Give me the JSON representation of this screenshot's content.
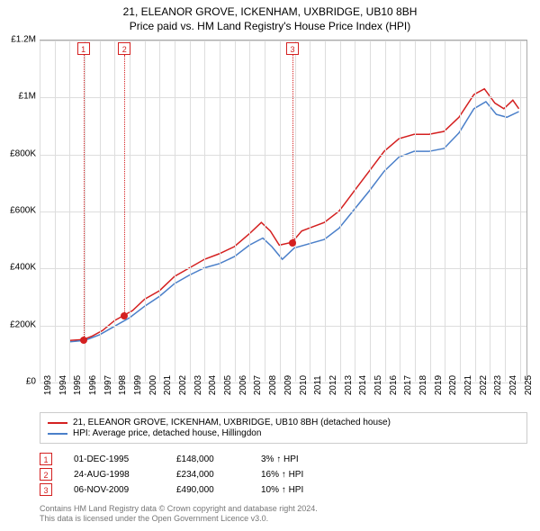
{
  "title_line1": "21, ELEANOR GROVE, ICKENHAM, UXBRIDGE, UB10 8BH",
  "title_line2": "Price paid vs. HM Land Registry's House Price Index (HPI)",
  "chart": {
    "type": "line",
    "background_color": "#ffffff",
    "grid_color": "#dddddd",
    "axis_color": "#aaaaaa",
    "x_range": [
      1993,
      2025.5
    ],
    "y_range": [
      0,
      1200000
    ],
    "y_ticks": [
      0,
      200000,
      400000,
      600000,
      800000,
      1000000,
      1200000
    ],
    "y_tick_labels": [
      "£0",
      "£200K",
      "£400K",
      "£600K",
      "£800K",
      "£1M",
      "£1.2M"
    ],
    "x_ticks": [
      1993,
      1994,
      1995,
      1996,
      1997,
      1998,
      1999,
      2000,
      2001,
      2002,
      2003,
      2004,
      2005,
      2006,
      2007,
      2008,
      2009,
      2010,
      2011,
      2012,
      2013,
      2014,
      2015,
      2016,
      2017,
      2018,
      2019,
      2020,
      2021,
      2022,
      2023,
      2024,
      2025
    ],
    "x_tick_labels": [
      "1993",
      "1994",
      "1995",
      "1996",
      "1997",
      "1998",
      "1999",
      "2000",
      "2001",
      "2002",
      "2003",
      "2004",
      "2005",
      "2006",
      "2007",
      "2008",
      "2009",
      "2010",
      "2011",
      "2012",
      "2013",
      "2014",
      "2015",
      "2016",
      "2017",
      "2018",
      "2019",
      "2020",
      "2021",
      "2022",
      "2023",
      "2024",
      "2025"
    ],
    "y_label_fontsize": 10,
    "x_label_fontsize": 10,
    "x_label_rotation": -90,
    "series": [
      {
        "name": "price_paid",
        "color": "#d42020",
        "line_width": 1.5,
        "data": [
          [
            1995.0,
            145000
          ],
          [
            1995.92,
            148000
          ],
          [
            1996.5,
            160000
          ],
          [
            1997.2,
            180000
          ],
          [
            1998.0,
            215000
          ],
          [
            1998.65,
            234000
          ],
          [
            1999.2,
            250000
          ],
          [
            2000.0,
            290000
          ],
          [
            2001.0,
            320000
          ],
          [
            2002.0,
            370000
          ],
          [
            2003.0,
            400000
          ],
          [
            2004.0,
            430000
          ],
          [
            2005.0,
            450000
          ],
          [
            2006.0,
            475000
          ],
          [
            2007.0,
            520000
          ],
          [
            2007.8,
            560000
          ],
          [
            2008.4,
            530000
          ],
          [
            2009.0,
            480000
          ],
          [
            2009.85,
            490000
          ],
          [
            2010.5,
            530000
          ],
          [
            2011.0,
            540000
          ],
          [
            2012.0,
            560000
          ],
          [
            2013.0,
            600000
          ],
          [
            2014.0,
            670000
          ],
          [
            2015.0,
            740000
          ],
          [
            2016.0,
            810000
          ],
          [
            2017.0,
            855000
          ],
          [
            2018.0,
            870000
          ],
          [
            2019.0,
            870000
          ],
          [
            2020.0,
            880000
          ],
          [
            2021.0,
            930000
          ],
          [
            2022.0,
            1010000
          ],
          [
            2022.7,
            1030000
          ],
          [
            2023.4,
            980000
          ],
          [
            2024.0,
            960000
          ],
          [
            2024.6,
            990000
          ],
          [
            2025.0,
            960000
          ]
        ]
      },
      {
        "name": "hpi",
        "color": "#4a7fc9",
        "line_width": 1.5,
        "data": [
          [
            1995.0,
            140000
          ],
          [
            1996.0,
            145000
          ],
          [
            1997.0,
            165000
          ],
          [
            1998.0,
            195000
          ],
          [
            1999.0,
            225000
          ],
          [
            2000.0,
            265000
          ],
          [
            2001.0,
            300000
          ],
          [
            2002.0,
            345000
          ],
          [
            2003.0,
            375000
          ],
          [
            2004.0,
            400000
          ],
          [
            2005.0,
            415000
          ],
          [
            2006.0,
            440000
          ],
          [
            2007.0,
            480000
          ],
          [
            2007.9,
            505000
          ],
          [
            2008.5,
            475000
          ],
          [
            2009.2,
            430000
          ],
          [
            2010.0,
            470000
          ],
          [
            2011.0,
            485000
          ],
          [
            2012.0,
            500000
          ],
          [
            2013.0,
            540000
          ],
          [
            2014.0,
            605000
          ],
          [
            2015.0,
            670000
          ],
          [
            2016.0,
            740000
          ],
          [
            2017.0,
            790000
          ],
          [
            2018.0,
            810000
          ],
          [
            2019.0,
            810000
          ],
          [
            2020.0,
            820000
          ],
          [
            2021.0,
            875000
          ],
          [
            2022.0,
            960000
          ],
          [
            2022.8,
            985000
          ],
          [
            2023.5,
            940000
          ],
          [
            2024.2,
            930000
          ],
          [
            2025.0,
            950000
          ]
        ]
      }
    ],
    "sale_markers": [
      {
        "n": "1",
        "x": 1995.92,
        "y": 148000
      },
      {
        "n": "2",
        "x": 1998.65,
        "y": 234000
      },
      {
        "n": "3",
        "x": 2009.85,
        "y": 490000
      }
    ],
    "marker_color": "#d42020",
    "marker_box_bg": "#ffffff"
  },
  "legend": {
    "rows": [
      {
        "color": "#d42020",
        "label": "21, ELEANOR GROVE, ICKENHAM, UXBRIDGE, UB10 8BH (detached house)"
      },
      {
        "color": "#4a7fc9",
        "label": "HPI: Average price, detached house, Hillingdon"
      }
    ]
  },
  "sales": [
    {
      "n": "1",
      "date": "01-DEC-1995",
      "price": "£148,000",
      "pct": "3% ↑ HPI"
    },
    {
      "n": "2",
      "date": "24-AUG-1998",
      "price": "£234,000",
      "pct": "16% ↑ HPI"
    },
    {
      "n": "3",
      "date": "06-NOV-2009",
      "price": "£490,000",
      "pct": "10% ↑ HPI"
    }
  ],
  "footer_line1": "Contains HM Land Registry data © Crown copyright and database right 2024.",
  "footer_line2": "This data is licensed under the Open Government Licence v3.0."
}
